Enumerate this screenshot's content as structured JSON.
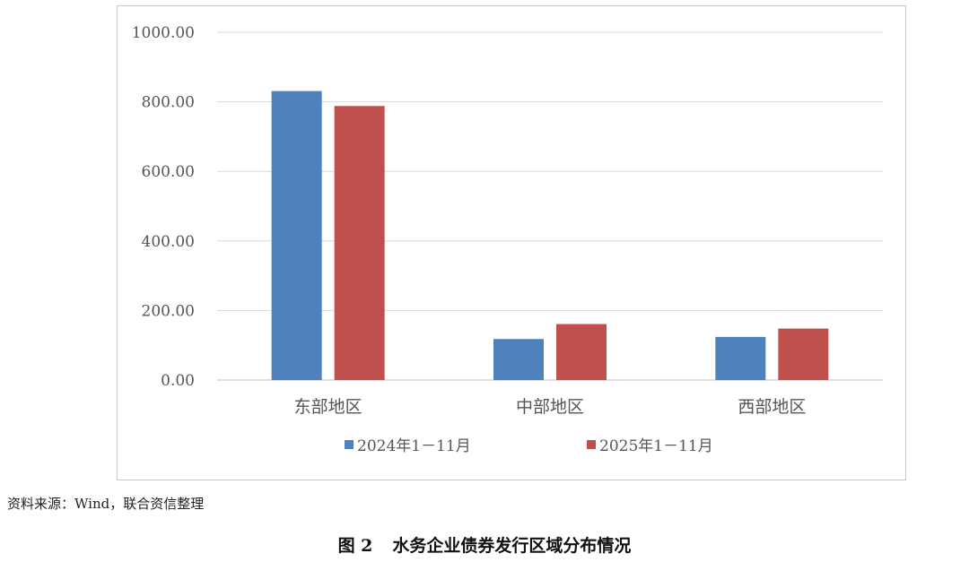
{
  "chart_data": {
    "type": "bar",
    "categories": [
      "东部地区",
      "中部地区",
      "西部地区"
    ],
    "series": [
      {
        "name": "2024年1－11月",
        "values": [
          831,
          118,
          124
        ],
        "color": "#4f81bd"
      },
      {
        "name": "2025年1－11月",
        "values": [
          788,
          161,
          148
        ],
        "color": "#c0504d"
      }
    ],
    "yticks": [
      "0.00",
      "200.00",
      "400.00",
      "600.00",
      "800.00",
      "1000.00"
    ],
    "ylim": [
      0,
      1000
    ],
    "grid": true,
    "legend_position": "bottom"
  },
  "source_note": "资料来源：Wind，联合资信整理",
  "caption": {
    "number": "图 2",
    "title": "水务企业债券发行区域分布情况"
  }
}
